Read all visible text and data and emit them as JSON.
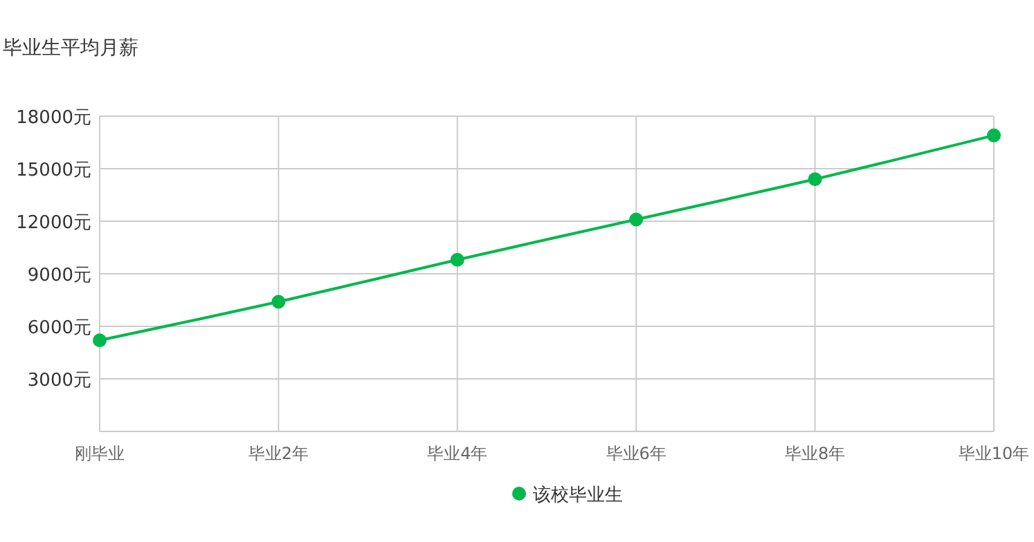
{
  "chart_data": {
    "type": "line",
    "title": "毕业生平均月薪",
    "categories": [
      "刚毕业",
      "毕业2年",
      "毕业4年",
      "毕业6年",
      "毕业8年",
      "毕业10年"
    ],
    "series": [
      {
        "name": "该校毕业生",
        "color": "#00b84c",
        "values": [
          5200,
          7400,
          9800,
          12100,
          14400,
          16900
        ]
      }
    ],
    "ylim": [
      0,
      18000
    ],
    "yticks": [
      {
        "value": 0,
        "label": null
      },
      {
        "value": 3000,
        "label": "3000元"
      },
      {
        "value": 6000,
        "label": "6000元"
      },
      {
        "value": 9000,
        "label": "9000元"
      },
      {
        "value": 12000,
        "label": "12000元"
      },
      {
        "value": 15000,
        "label": "15000元"
      },
      {
        "value": 18000,
        "label": "18000元"
      }
    ],
    "grid": true,
    "legend": "bottom",
    "marker": "circle",
    "line_style": "solid"
  }
}
